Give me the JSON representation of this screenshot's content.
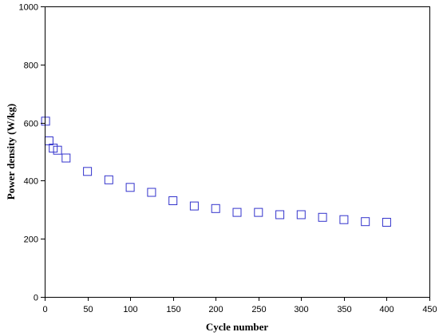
{
  "chart_data": {
    "type": "scatter",
    "title": "",
    "xlabel": "Cycle number",
    "ylabel": "Power density (W/kg)",
    "xlim": [
      0,
      450
    ],
    "ylim": [
      0,
      1000
    ],
    "xticks": [
      0,
      50,
      100,
      150,
      200,
      250,
      300,
      350,
      400,
      450
    ],
    "yticks": [
      0,
      200,
      400,
      600,
      800,
      1000
    ],
    "grid": false,
    "legend": "none",
    "marker": "open-square",
    "series": [
      {
        "color": "#3333cc",
        "x": [
          1,
          5,
          10,
          15,
          25,
          50,
          75,
          100,
          125,
          150,
          175,
          200,
          225,
          250,
          275,
          300,
          325,
          350,
          375,
          400
        ],
        "y": [
          605,
          537,
          512,
          505,
          478,
          432,
          403,
          377,
          360,
          331,
          313,
          304,
          291,
          291,
          283,
          283,
          274,
          266,
          259,
          257
        ]
      }
    ]
  }
}
